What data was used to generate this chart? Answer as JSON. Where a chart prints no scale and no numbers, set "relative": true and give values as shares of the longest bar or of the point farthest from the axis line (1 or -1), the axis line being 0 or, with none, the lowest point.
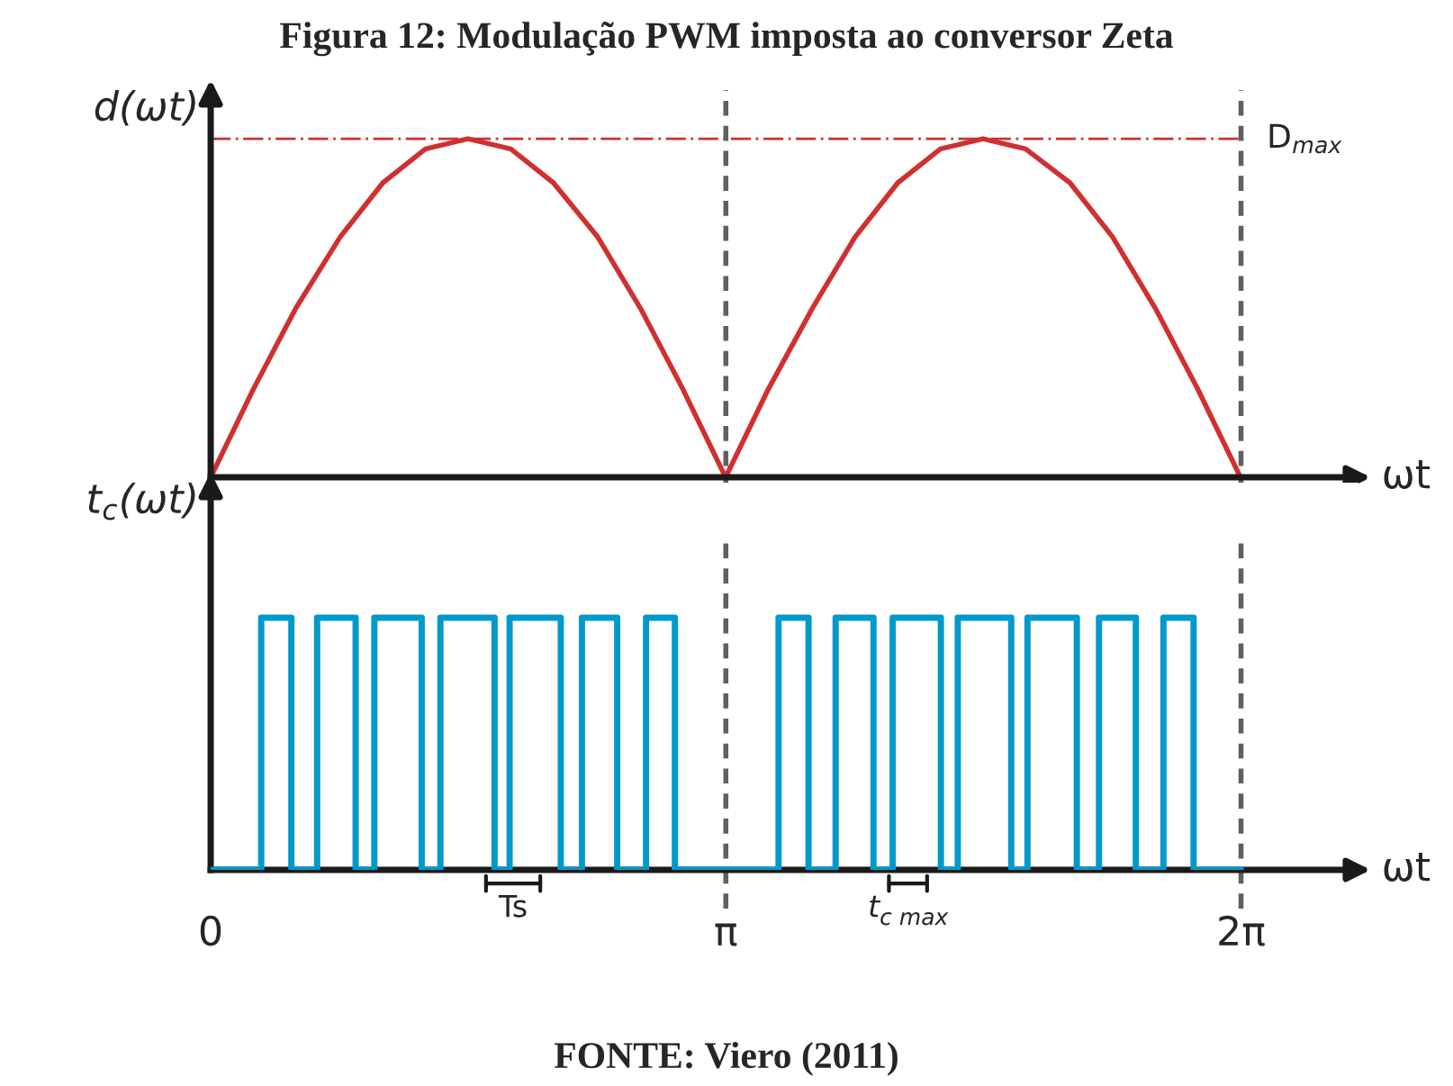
{
  "chart_data": [
    {
      "type": "line",
      "title": "Figura 12: Modulação PWM imposta ao conversor Zeta",
      "ylabel": "d(ωt)",
      "xlabel": "ωt",
      "relative": true,
      "xlim": [
        0,
        7.0
      ],
      "tick_labels": false,
      "grid": false,
      "legend": false,
      "marker": "none",
      "series": [
        {
          "color": "#d03030",
          "line_style": "solid",
          "x": [
            0,
            0.26,
            0.52,
            0.79,
            1.05,
            1.31,
            1.57,
            1.83,
            2.09,
            2.36,
            2.62,
            2.88,
            3.14,
            3.4,
            3.67,
            3.93,
            4.19,
            4.45,
            4.71,
            4.97,
            5.24,
            5.5,
            5.76,
            6.02,
            6.28
          ],
          "values": [
            0,
            0.26,
            0.5,
            0.71,
            0.87,
            0.97,
            1,
            0.97,
            0.87,
            0.71,
            0.5,
            0.26,
            0,
            0.26,
            0.5,
            0.71,
            0.87,
            0.97,
            1,
            0.97,
            0.87,
            0.71,
            0.5,
            0.26,
            0
          ]
        }
      ],
      "ref_lines": [
        {
          "axis": "y",
          "value": 1,
          "label": "D$_{max}$",
          "color": "#d03030",
          "line_style": "dashdot"
        },
        {
          "axis": "x",
          "value": 3.1416,
          "color": "#606060",
          "line_style": "dashed"
        },
        {
          "axis": "x",
          "value": 6.2832,
          "color": "#606060",
          "line_style": "dashed"
        }
      ]
    },
    {
      "type": "step",
      "ylabel": "t$_{c}$(ωt)",
      "xlabel": "ωt",
      "relative": true,
      "xlim": [
        0,
        7.0
      ],
      "xticks": [
        {
          "value": 0,
          "label": "0"
        },
        {
          "value": 3.1416,
          "label": "π"
        },
        {
          "value": 6.2832,
          "label": "2π"
        }
      ],
      "tick_labels": "x",
      "grid": false,
      "legend": false,
      "series": [
        {
          "color": "#0099cc",
          "x": [
            0,
            0.308,
            0.492,
            0.649,
            0.884,
            0.998,
            1.287,
            1.401,
            1.731,
            1.823,
            2.135,
            2.264,
            2.479,
            2.655,
            2.831,
            3.463,
            3.646,
            3.811,
            4.042,
            4.159,
            4.453,
            4.556,
            4.882,
            4.981,
            5.282,
            5.417,
            5.642,
            5.81,
            5.994,
            6.283
          ],
          "values": [
            0,
            1,
            0,
            1,
            0,
            1,
            0,
            1,
            0,
            1,
            0,
            1,
            0,
            1,
            0,
            1,
            0,
            1,
            0,
            1,
            0,
            1,
            0,
            1,
            0,
            1,
            0,
            1,
            0,
            0
          ]
        }
      ],
      "ref_lines": [
        {
          "axis": "x",
          "value": 3.1416,
          "color": "#606060",
          "line_style": "dashed"
        },
        {
          "axis": "x",
          "value": 6.2832,
          "color": "#606060",
          "line_style": "dashed"
        }
      ],
      "annotations": [
        "Ts",
        "t$_{c max}$",
        "FONTE: Viero (2011)"
      ]
    }
  ]
}
